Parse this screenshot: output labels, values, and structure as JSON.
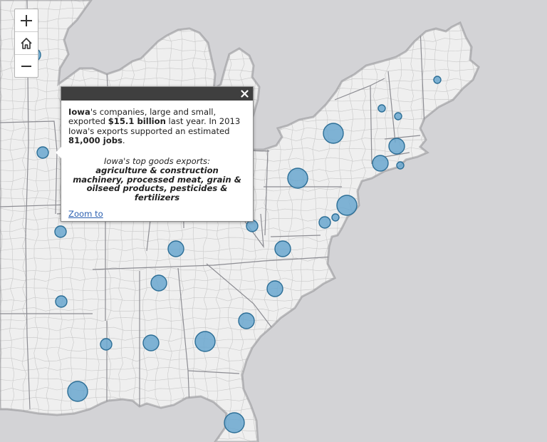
{
  "map": {
    "land_color": "#efefef",
    "water_color": "#d3d3d6",
    "border_color": "#c8c8c8",
    "outline_color": "#8f8f94",
    "bubble_fill": "#6aa7cf",
    "bubble_stroke": "#2c6e96"
  },
  "zoom_controls": {
    "zoom_in_icon": "plus-icon",
    "home_icon": "home-icon",
    "zoom_out_icon": "minus-icon"
  },
  "popup": {
    "state": "Iowa",
    "summary_part1": "'s companies, large and small, exported ",
    "export_value": "$15.1 billion",
    "summary_part2": " last year. In 2013 Iowa's exports supported an estimated ",
    "jobs": "81,000 jobs",
    "summary_end": ".",
    "exports_title": "Iowa's top goods exports:",
    "exports_lines": [
      "agriculture & construction",
      "machinery, processed meat, grain &",
      "oilseed products, pesticides &",
      "fertilizers"
    ],
    "zoom_link": "Zoom to",
    "close_icon": "close-icon"
  }
}
